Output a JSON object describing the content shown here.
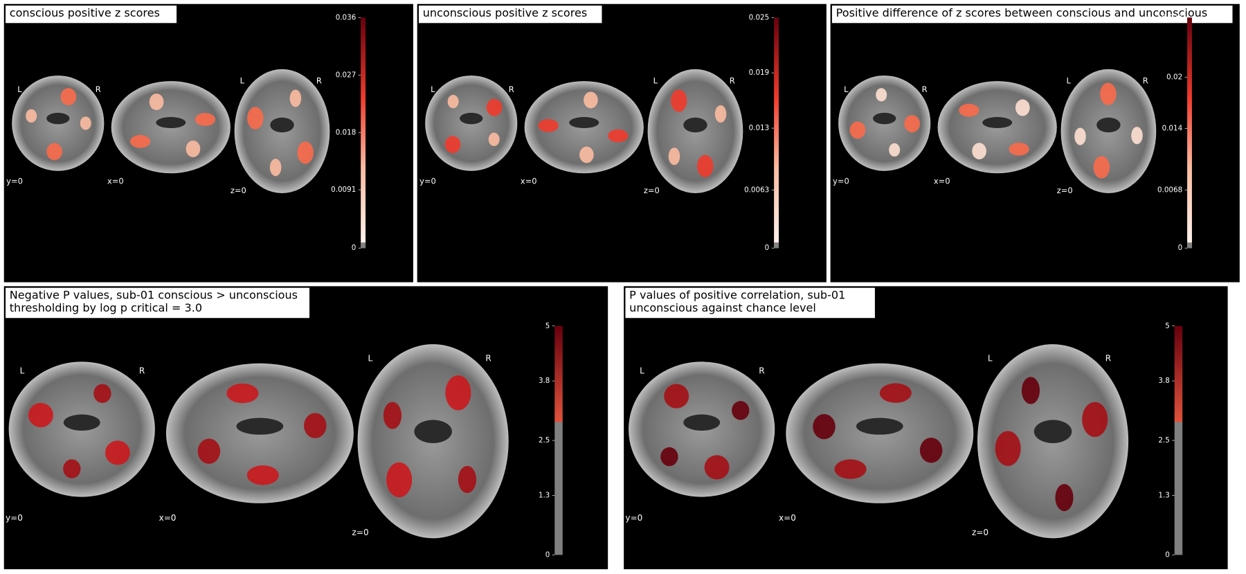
{
  "panels": [
    {
      "title_lines": [
        "conscious positive z scores"
      ],
      "orientation": [
        "L",
        "R"
      ],
      "cuts": [
        "y=0",
        "x=0",
        "z=0"
      ],
      "colorbar": {
        "ticks": [
          0,
          0.0091,
          0.018,
          0.027,
          0.036
        ]
      }
    },
    {
      "title_lines": [
        "unconscious positive z scores"
      ],
      "orientation": [
        "L",
        "R"
      ],
      "cuts": [
        "y=0",
        "x=0",
        "z=0"
      ],
      "colorbar": {
        "ticks": [
          0,
          0.0063,
          0.013,
          0.019,
          0.025
        ]
      }
    },
    {
      "title_lines": [
        "Positive difference of z scores between conscious and unconscious"
      ],
      "orientation": [
        "L",
        "R"
      ],
      "cuts": [
        "y=0",
        "x=0",
        "z=0"
      ],
      "colorbar": {
        "ticks": [
          0,
          0.0068,
          0.014,
          0.02,
          0.027
        ]
      }
    },
    {
      "title_lines": [
        "Negative P values, sub-01 conscious > unconscious",
        "thresholding by log p critical = 3.0"
      ],
      "orientation": [
        "L",
        "R"
      ],
      "cuts": [
        "y=0",
        "x=0",
        "z=0"
      ],
      "colorbar": {
        "ticks": [
          0,
          1.3,
          2.5,
          3.8,
          5
        ]
      }
    },
    {
      "title_lines": [
        "P values of positive correlation, sub-01",
        "unconscious against chance level"
      ],
      "orientation": [
        "L",
        "R"
      ],
      "cuts": [
        "y=0",
        "x=0",
        "z=0"
      ],
      "colorbar": {
        "ticks": [
          0,
          1.3,
          2.5,
          3.8,
          5
        ]
      }
    }
  ]
}
